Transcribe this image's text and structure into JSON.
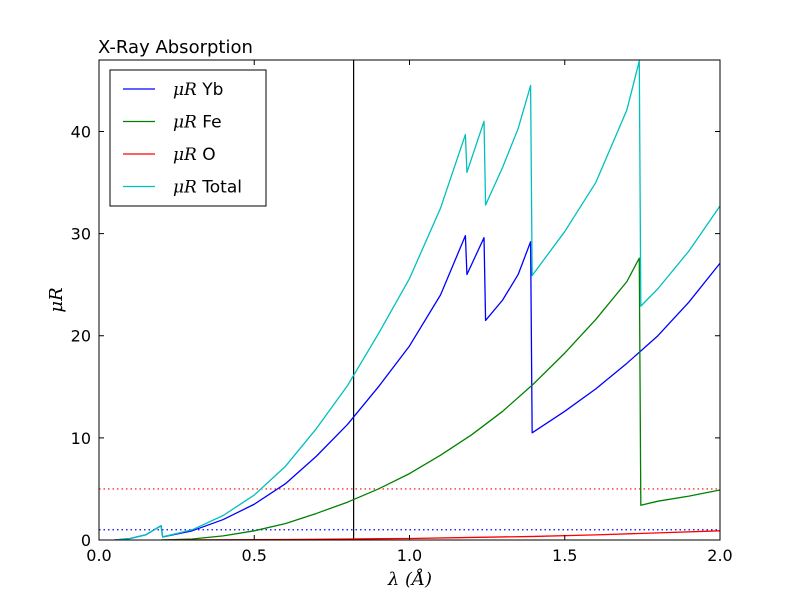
{
  "chart_data": {
    "type": "line",
    "title": "X-Ray Absorption",
    "xlabel": "λ (Å)",
    "ylabel": "μR",
    "xlim": [
      0.0,
      2.0
    ],
    "ylim": [
      0,
      47
    ],
    "xticks": [
      0.0,
      0.5,
      1.0,
      1.5,
      2.0
    ],
    "xtick_labels": [
      "0.0",
      "0.5",
      "1.0",
      "1.5",
      "2.0"
    ],
    "yticks": [
      0,
      10,
      20,
      30,
      40
    ],
    "ytick_labels": [
      "0",
      "10",
      "20",
      "30",
      "40"
    ],
    "grid": false,
    "legend_position": "top-left",
    "series": [
      {
        "name": "μR Yb",
        "legend_math": "μR",
        "legend_label": "Yb",
        "color": "#0000ff",
        "points": [
          [
            0.05,
            0.0
          ],
          [
            0.1,
            0.15
          ],
          [
            0.15,
            0.5
          ],
          [
            0.2,
            1.4
          ],
          [
            0.205,
            0.3
          ],
          [
            0.3,
            0.9
          ],
          [
            0.4,
            2.0
          ],
          [
            0.5,
            3.5
          ],
          [
            0.6,
            5.5
          ],
          [
            0.7,
            8.2
          ],
          [
            0.8,
            11.3
          ],
          [
            0.9,
            15.0
          ],
          [
            1.0,
            19.0
          ],
          [
            1.1,
            24.0
          ],
          [
            1.18,
            29.8
          ],
          [
            1.185,
            26.0
          ],
          [
            1.24,
            29.6
          ],
          [
            1.245,
            21.5
          ],
          [
            1.3,
            23.5
          ],
          [
            1.35,
            26.0
          ],
          [
            1.39,
            29.2
          ],
          [
            1.395,
            10.5
          ],
          [
            1.5,
            12.6
          ],
          [
            1.6,
            14.8
          ],
          [
            1.7,
            17.3
          ],
          [
            1.8,
            20.0
          ],
          [
            1.9,
            23.3
          ],
          [
            2.0,
            27.1
          ]
        ]
      },
      {
        "name": "μR Fe",
        "legend_math": "μR",
        "legend_label": "Fe",
        "color": "#008000",
        "points": [
          [
            0.2,
            0.0
          ],
          [
            0.3,
            0.1
          ],
          [
            0.4,
            0.4
          ],
          [
            0.5,
            0.9
          ],
          [
            0.6,
            1.6
          ],
          [
            0.7,
            2.6
          ],
          [
            0.8,
            3.7
          ],
          [
            0.9,
            5.0
          ],
          [
            1.0,
            6.5
          ],
          [
            1.1,
            8.3
          ],
          [
            1.2,
            10.3
          ],
          [
            1.3,
            12.6
          ],
          [
            1.4,
            15.3
          ],
          [
            1.5,
            18.3
          ],
          [
            1.6,
            21.6
          ],
          [
            1.7,
            25.3
          ],
          [
            1.74,
            27.6
          ],
          [
            1.745,
            3.4
          ],
          [
            1.8,
            3.8
          ],
          [
            1.9,
            4.3
          ],
          [
            2.0,
            4.9
          ]
        ]
      },
      {
        "name": "μR O",
        "legend_math": "μR",
        "legend_label": "O",
        "color": "#ff0000",
        "points": [
          [
            0.2,
            0.0
          ],
          [
            0.4,
            0.02
          ],
          [
            0.6,
            0.05
          ],
          [
            0.8,
            0.1
          ],
          [
            1.0,
            0.15
          ],
          [
            1.2,
            0.25
          ],
          [
            1.4,
            0.35
          ],
          [
            1.6,
            0.5
          ],
          [
            1.8,
            0.7
          ],
          [
            2.0,
            0.9
          ]
        ]
      },
      {
        "name": "μR Total",
        "legend_math": "μR",
        "legend_label": "Total",
        "color": "#00bfbf",
        "points": [
          [
            0.05,
            0.0
          ],
          [
            0.1,
            0.15
          ],
          [
            0.15,
            0.5
          ],
          [
            0.2,
            1.4
          ],
          [
            0.205,
            0.3
          ],
          [
            0.3,
            1.0
          ],
          [
            0.4,
            2.4
          ],
          [
            0.5,
            4.4
          ],
          [
            0.6,
            7.2
          ],
          [
            0.7,
            10.9
          ],
          [
            0.8,
            15.1
          ],
          [
            0.9,
            20.2
          ],
          [
            1.0,
            25.6
          ],
          [
            1.1,
            32.5
          ],
          [
            1.18,
            39.7
          ],
          [
            1.185,
            36.0
          ],
          [
            1.24,
            41.0
          ],
          [
            1.245,
            32.8
          ],
          [
            1.3,
            36.5
          ],
          [
            1.35,
            40.3
          ],
          [
            1.39,
            44.5
          ],
          [
            1.395,
            25.9
          ],
          [
            1.5,
            30.2
          ],
          [
            1.6,
            35.0
          ],
          [
            1.7,
            42.1
          ],
          [
            1.74,
            46.9
          ],
          [
            1.745,
            22.9
          ],
          [
            1.8,
            24.6
          ],
          [
            1.9,
            28.3
          ],
          [
            2.0,
            32.7
          ]
        ]
      }
    ],
    "reference_lines": [
      {
        "orientation": "horizontal",
        "y": 5,
        "color": "#ff0000",
        "style": "dotted"
      },
      {
        "orientation": "horizontal",
        "y": 1,
        "color": "#0000ff",
        "style": "dotted"
      },
      {
        "orientation": "vertical",
        "x": 0.82,
        "color": "#000000",
        "style": "solid"
      }
    ]
  }
}
